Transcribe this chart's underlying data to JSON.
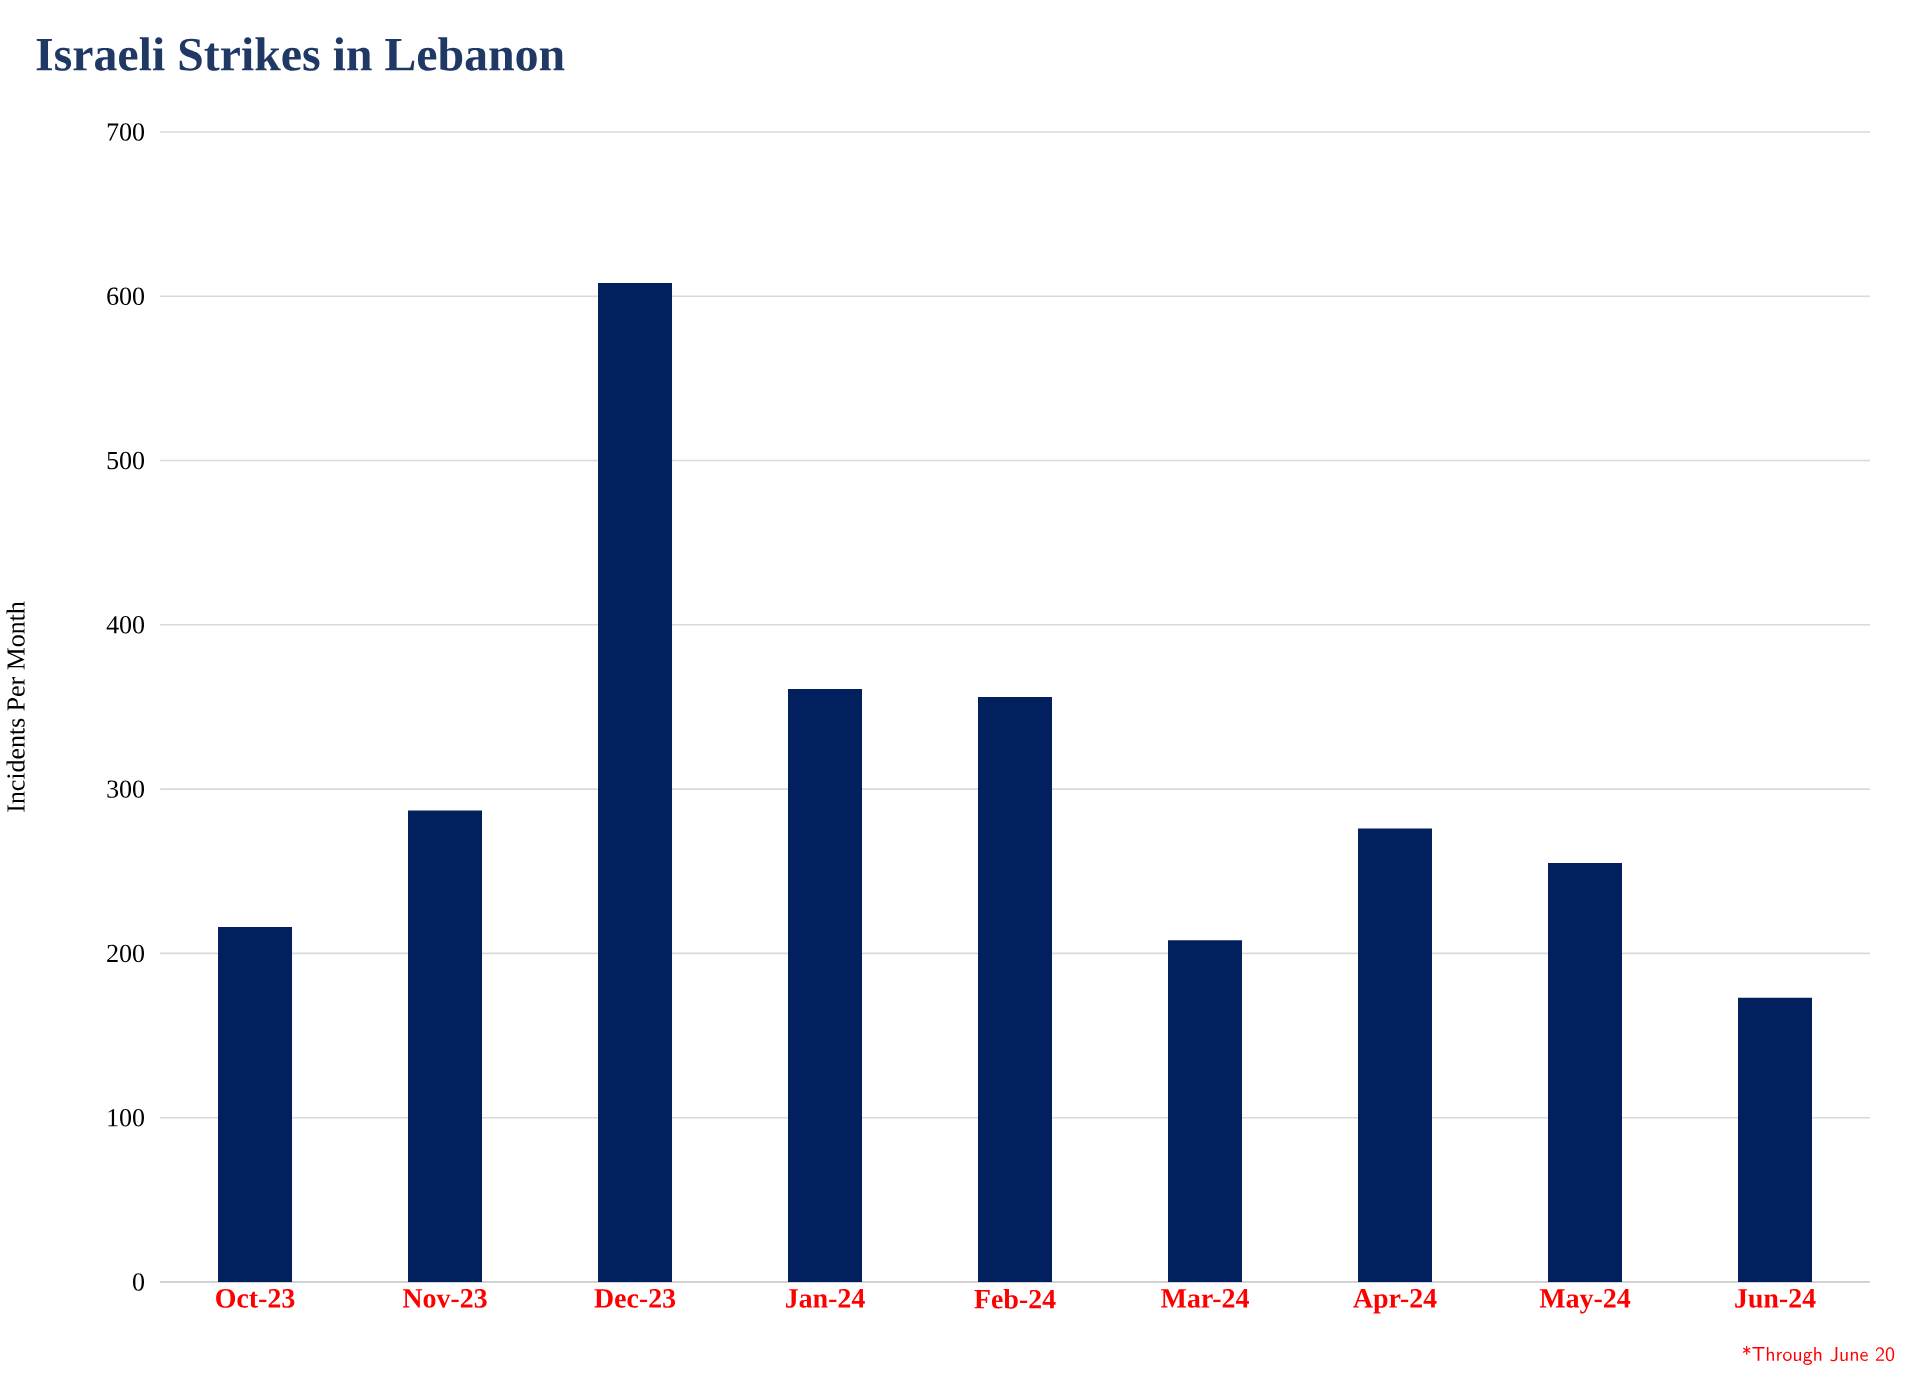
{
  "chart_data": {
    "type": "bar",
    "title": "Israeli Strikes in Lebanon",
    "ylabel": "Incidents Per Month",
    "categories": [
      "Oct-23",
      "Nov-23",
      "Dec-23",
      "Jan-24",
      "Feb-24",
      "Mar-24",
      "Apr-24",
      "May-24",
      "Jun-24"
    ],
    "values": [
      216,
      287,
      608,
      361,
      356,
      208,
      276,
      255,
      173
    ],
    "color": "#03205e",
    "ylim": [
      0,
      700
    ],
    "yticks": [
      0,
      100,
      200,
      300,
      400,
      500,
      600,
      700
    ],
    "grid": "y",
    "annotations": [
      "*Through June 20"
    ]
  }
}
